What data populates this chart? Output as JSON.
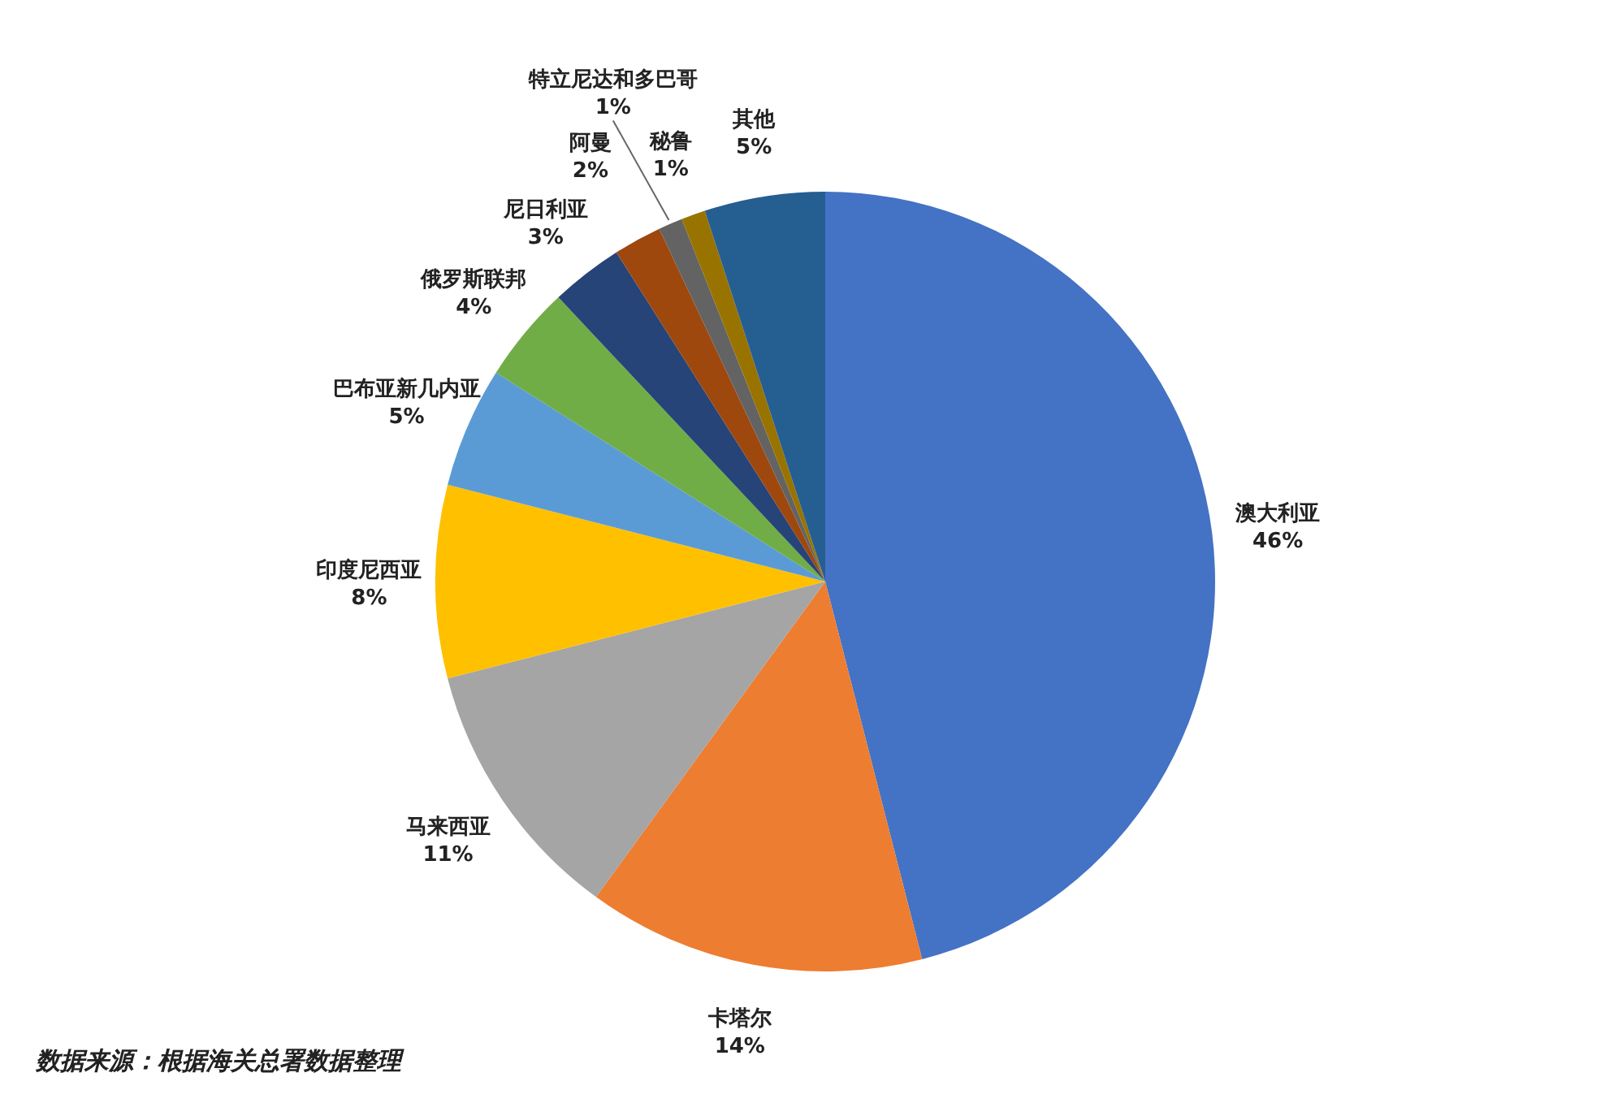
{
  "chart_data": {
    "type": "pie",
    "categories": [
      "澳大利亚",
      "卡塔尔",
      "马来西亚",
      "印度尼西亚",
      "巴布亚新几内亚",
      "俄罗斯联邦",
      "尼日利亚",
      "阿曼",
      "特立尼达和多巴哥",
      "秘鲁",
      "其他"
    ],
    "values": [
      46,
      14,
      11,
      8,
      5,
      4,
      3,
      2,
      1,
      1,
      5
    ],
    "value_labels": [
      "46%",
      "14%",
      "11%",
      "8%",
      "5%",
      "4%",
      "3%",
      "2%",
      "1%",
      "1%",
      "5%"
    ],
    "colors": [
      "#4472c4",
      "#ed7d31",
      "#a5a5a5",
      "#ffc000",
      "#5b9bd5",
      "#70ad47",
      "#264478",
      "#9e480e",
      "#636363",
      "#997300",
      "#255e91"
    ],
    "annotations": [
      "数据来源：根据海关总署数据整理"
    ]
  }
}
